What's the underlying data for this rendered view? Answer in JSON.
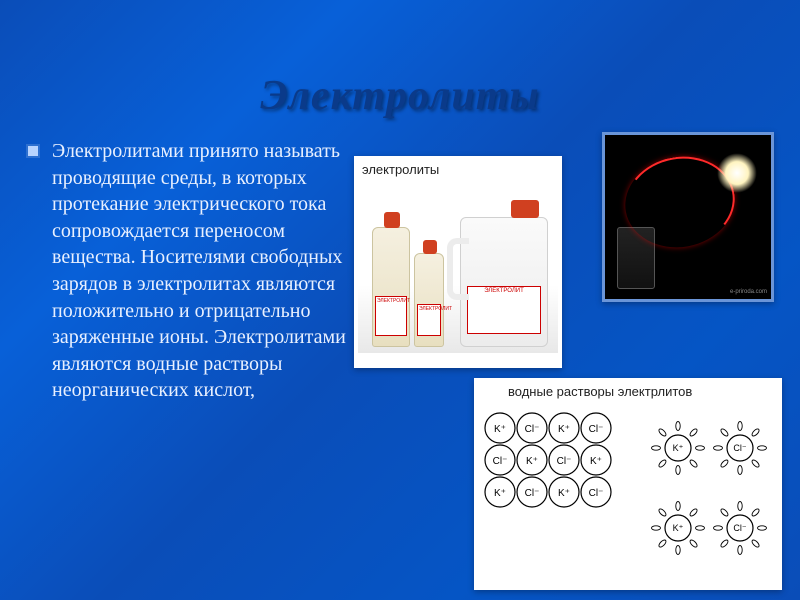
{
  "title": "Электролиты",
  "body_text": "Электролитами принято называть проводящие среды, в которых протекание электрического тока сопровождается переносом вещества. Носителями свободных зарядов в электролитах являются положительно и отрицательно заряженные ионы. Электролитами являются водные растворы неорганических кислот,",
  "images": {
    "bottles": {
      "caption": "электролиты",
      "product_label": "ЭЛЕКТРОЛИТ"
    },
    "bulb": {
      "watermark": "e-priroda.com",
      "wire_color": "#ff2a2a",
      "background": "#000000"
    },
    "ions": {
      "caption": "водные растворы электрлитов",
      "lattice_labels": {
        "cation": "K⁺",
        "anion": "Cl⁻"
      },
      "lattice_rows": 3,
      "lattice_cols": 4,
      "free_ion_groups": 2,
      "colors": {
        "stroke": "#000000",
        "background": "#ffffff"
      }
    }
  },
  "style": {
    "title_color": "#0a3a8a",
    "title_fontsize": 42,
    "body_color": "#e8f0ff",
    "body_fontsize": 20,
    "bullet_color": "#b8d4ff",
    "background_gradient": [
      "#0a4db8",
      "#0860d8",
      "#0a4db8"
    ],
    "image_border": "#6a95d8"
  }
}
